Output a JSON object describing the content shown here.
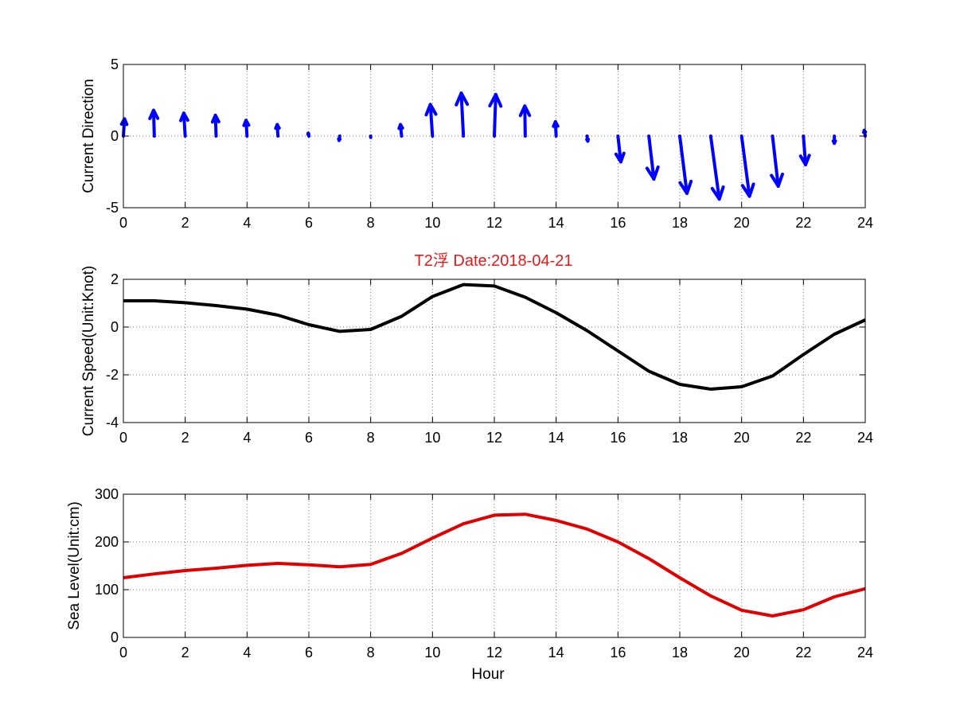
{
  "title": "T2浮    Date:2018-04-21",
  "title_color": "#e31a1c",
  "chart_data": [
    {
      "type": "quiver",
      "ylabel": "Current Direction",
      "xlim": [
        0,
        24
      ],
      "ylim": [
        -5,
        5
      ],
      "xticks": [
        "0",
        "2",
        "4",
        "6",
        "8",
        "10",
        "12",
        "14",
        "16",
        "18",
        "20",
        "22",
        "24"
      ],
      "yticks": [
        "5",
        "0",
        "-5"
      ],
      "color": "#0000ff",
      "hours": [
        0,
        1,
        2,
        3,
        4,
        5,
        6,
        7,
        8,
        9,
        10,
        11,
        12,
        13,
        14,
        15,
        16,
        17,
        18,
        19,
        20,
        21,
        22,
        23,
        24
      ],
      "u": [
        0.08,
        -0.05,
        -0.1,
        -0.05,
        -0.07,
        -0.05,
        -0.05,
        -0.05,
        0,
        -0.08,
        -0.15,
        -0.15,
        0.1,
        -0.03,
        -0.05,
        0.05,
        0.2,
        0.35,
        0.5,
        0.6,
        0.55,
        0.4,
        0.15,
        0,
        -0.07
      ],
      "v": [
        1.2,
        1.8,
        1.6,
        1.45,
        1.1,
        0.8,
        0.2,
        -0.3,
        -0.1,
        0.8,
        2.2,
        3.0,
        2.9,
        2.1,
        1.0,
        -0.35,
        -1.8,
        -3.0,
        -4.0,
        -4.4,
        -4.2,
        -3.5,
        -2.0,
        -0.5,
        0.4
      ]
    },
    {
      "type": "line",
      "ylabel": "Current Speed(Unit:Knot)",
      "xlim": [
        0,
        24
      ],
      "ylim": [
        -4,
        2
      ],
      "xticks": [
        "0",
        "2",
        "4",
        "6",
        "8",
        "10",
        "12",
        "14",
        "16",
        "18",
        "20",
        "22",
        "24"
      ],
      "yticks": [
        "2",
        "0",
        "-2",
        "-4"
      ],
      "color": "#000000",
      "x": [
        0,
        1,
        2,
        3,
        4,
        5,
        6,
        7,
        8,
        9,
        10,
        11,
        12,
        13,
        14,
        15,
        16,
        17,
        18,
        19,
        20,
        21,
        22,
        23,
        24
      ],
      "y": [
        1.1,
        1.1,
        1.02,
        0.9,
        0.75,
        0.5,
        0.1,
        -0.18,
        -0.1,
        0.45,
        1.28,
        1.78,
        1.72,
        1.25,
        0.6,
        -0.15,
        -1.0,
        -1.85,
        -2.4,
        -2.6,
        -2.5,
        -2.05,
        -1.15,
        -0.3,
        0.3
      ]
    },
    {
      "type": "line",
      "ylabel": "Sea Level(Unit:cm)",
      "xlabel": "Hour",
      "xlim": [
        0,
        24
      ],
      "ylim": [
        0,
        300
      ],
      "xticks": [
        "0",
        "2",
        "4",
        "6",
        "8",
        "10",
        "12",
        "14",
        "16",
        "18",
        "20",
        "22",
        "24"
      ],
      "yticks": [
        "300",
        "200",
        "100",
        "0"
      ],
      "color": "#e00000",
      "x": [
        0,
        1,
        2,
        3,
        4,
        5,
        6,
        7,
        8,
        9,
        10,
        11,
        12,
        13,
        14,
        15,
        16,
        17,
        18,
        19,
        20,
        21,
        22,
        23,
        24
      ],
      "y": [
        125,
        133,
        140,
        145,
        151,
        155,
        152,
        148,
        153,
        176,
        208,
        238,
        256,
        258,
        245,
        227,
        200,
        165,
        125,
        87,
        57,
        45,
        58,
        85,
        102
      ]
    }
  ]
}
